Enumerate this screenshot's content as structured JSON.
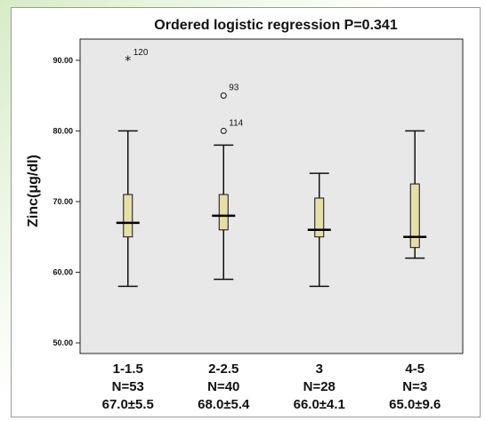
{
  "chart_data": {
    "type": "boxplot",
    "title": "Ordered logistic regression P=0.341",
    "ylabel": "Zinc(μg/dl)",
    "xlabel": "",
    "ylim": [
      48.5,
      93.0
    ],
    "yticks": [
      "50.00",
      "60.00",
      "70.00",
      "80.00",
      "90.00"
    ],
    "ytick_values": [
      50,
      60,
      70,
      80,
      90
    ],
    "grid": false,
    "plot_background": "#e8e8e8",
    "box_color": "#e3dfa6",
    "categories": [
      {
        "label": "1-1.5",
        "n_label": "N=53",
        "stat_label": "67.0±5.5"
      },
      {
        "label": "2-2.5",
        "n_label": "N=40",
        "stat_label": "68.0±5.4"
      },
      {
        "label": "3",
        "n_label": "N=28",
        "stat_label": "66.0±4.1"
      },
      {
        "label": "4-5",
        "n_label": "N=3",
        "stat_label": "65.0±9.6"
      }
    ],
    "boxes": [
      {
        "whisker_low": 58,
        "q1": 65,
        "median": 67,
        "q3": 71,
        "whisker_high": 80
      },
      {
        "whisker_low": 59,
        "q1": 66,
        "median": 68,
        "q3": 71,
        "whisker_high": 78
      },
      {
        "whisker_low": 58,
        "q1": 65,
        "median": 66,
        "q3": 70.5,
        "whisker_high": 74
      },
      {
        "whisker_low": 62,
        "q1": 63.5,
        "median": 65,
        "q3": 72.5,
        "whisker_high": 80
      }
    ],
    "outliers": [
      {
        "category": 0,
        "value": 90,
        "label": "120",
        "marker": "star"
      },
      {
        "category": 1,
        "value": 85,
        "label": "93",
        "marker": "circle"
      },
      {
        "category": 1,
        "value": 80,
        "label": "114",
        "marker": "circle"
      }
    ]
  }
}
